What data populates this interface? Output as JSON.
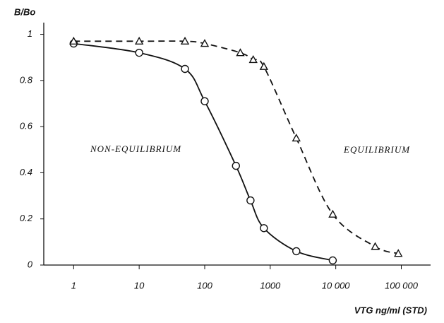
{
  "chart_data": {
    "type": "line",
    "y_label": "B/Bo",
    "x_label": "VTG ng/ml (STD)",
    "log_x": true,
    "xlim": [
      0.35,
      280000
    ],
    "ylim": [
      0,
      1.02
    ],
    "xticks": [
      1,
      10,
      100,
      1000,
      {
        "value": 10000,
        "label": "10 000"
      },
      {
        "value": 100000,
        "label": "100 000"
      }
    ],
    "yticks": [
      0,
      0.2,
      0.4,
      0.6,
      0.8,
      1
    ],
    "series": [
      {
        "name": "NON-EQUILIBRIUM",
        "color": "#111111",
        "dash": false,
        "marker": "circle",
        "x": [
          1,
          10,
          50,
          100,
          300,
          500,
          800,
          2500,
          9000
        ],
        "values": [
          0.96,
          0.92,
          0.85,
          0.71,
          0.43,
          0.28,
          0.16,
          0.06,
          0.02
        ]
      },
      {
        "name": "EQUILIBRIUM",
        "color": "#111111",
        "dash": true,
        "marker": "triangle",
        "x": [
          1,
          10,
          50,
          100,
          350,
          550,
          800,
          2500,
          9000,
          40000,
          90000
        ],
        "values": [
          0.97,
          0.97,
          0.97,
          0.96,
          0.92,
          0.89,
          0.86,
          0.55,
          0.22,
          0.08,
          0.05
        ]
      }
    ]
  }
}
